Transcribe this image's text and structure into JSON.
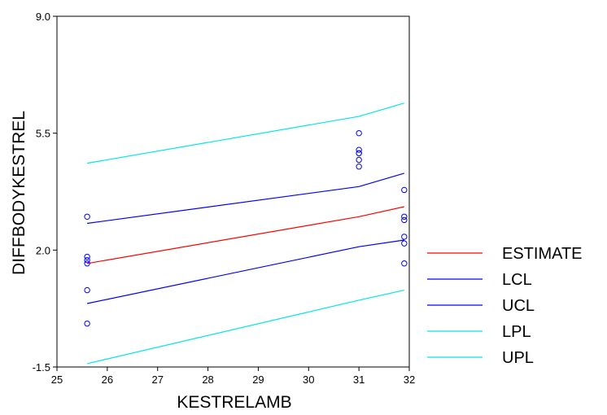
{
  "chart_data": {
    "type": "line",
    "xlabel": "KESTRELAMB",
    "ylabel": "DIFFBODYKESTREL",
    "xlim": [
      25,
      32
    ],
    "ylim": [
      -1.5,
      9.0
    ],
    "x_ticks": [
      "25",
      "26",
      "27",
      "28",
      "29",
      "30",
      "31",
      "32"
    ],
    "y_ticks": [
      {
        "value": -1.5,
        "label": "-1.5"
      },
      {
        "value": 2.0,
        "label": "2.0"
      },
      {
        "value": 5.5,
        "label": "5.5"
      },
      {
        "value": 9.0,
        "label": "9.0"
      }
    ],
    "grid": false,
    "legend_position": "right",
    "series": [
      {
        "name": "ESTIMATE",
        "color": "#ff0000",
        "x": [
          25.6,
          31.0,
          31.9
        ],
        "y": [
          1.6,
          3.0,
          3.3
        ]
      },
      {
        "name": "LCL",
        "color": "#0000ff",
        "x": [
          25.6,
          31.0,
          31.9
        ],
        "y": [
          0.4,
          2.1,
          2.3
        ]
      },
      {
        "name": "UCL",
        "color": "#0000ff",
        "x": [
          25.6,
          31.0,
          31.9
        ],
        "y": [
          2.8,
          3.9,
          4.3
        ]
      },
      {
        "name": "LPL",
        "color": "#00e6e6",
        "x": [
          25.6,
          31.0,
          31.9
        ],
        "y": [
          -1.4,
          0.5,
          0.8
        ]
      },
      {
        "name": "UPL",
        "color": "#00e6e6",
        "x": [
          25.6,
          31.0,
          31.9
        ],
        "y": [
          4.6,
          6.0,
          6.4
        ]
      }
    ],
    "points": {
      "color": "#0000ff",
      "x": [
        25.6,
        25.6,
        25.6,
        25.6,
        25.6,
        25.6,
        31.0,
        31.0,
        31.0,
        31.0,
        31.0,
        31.0,
        31.9,
        31.9,
        31.9,
        31.9,
        31.9,
        31.9
      ],
      "y": [
        3.0,
        1.8,
        1.6,
        0.8,
        -0.2,
        1.7,
        5.5,
        5.0,
        4.9,
        4.7,
        4.5,
        4.9,
        3.8,
        3.0,
        2.9,
        2.4,
        2.2,
        1.6
      ]
    }
  }
}
